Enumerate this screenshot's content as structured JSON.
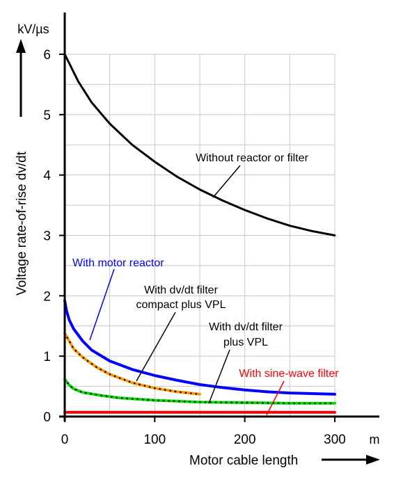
{
  "chart_data": {
    "type": "line",
    "title": "",
    "xlabel": "Motor cable length",
    "ylabel": "Voltage rate-of-rise dv/dt",
    "x_unit": "m",
    "y_unit": "kV/µs",
    "xlim": [
      0,
      300
    ],
    "ylim": [
      0,
      6
    ],
    "x_ticks": [
      0,
      100,
      200,
      300
    ],
    "y_ticks": [
      0,
      1,
      2,
      3,
      4,
      5,
      6
    ],
    "grid": true,
    "series": [
      {
        "name": "Without reactor or filter",
        "color": "#000000",
        "style": "solid",
        "x": [
          0,
          5,
          15,
          30,
          50,
          75,
          100,
          125,
          150,
          175,
          200,
          225,
          250,
          275,
          300
        ],
        "y": [
          6.0,
          5.85,
          5.55,
          5.2,
          4.85,
          4.5,
          4.22,
          3.97,
          3.76,
          3.58,
          3.42,
          3.28,
          3.16,
          3.07,
          3.0
        ]
      },
      {
        "name": "With motor reactor",
        "color": "#0000ff",
        "style": "solid",
        "x": [
          0,
          2,
          5,
          10,
          20,
          30,
          50,
          75,
          100,
          125,
          150,
          175,
          200,
          225,
          250,
          275,
          300
        ],
        "y": [
          1.92,
          1.75,
          1.6,
          1.45,
          1.25,
          1.1,
          0.92,
          0.78,
          0.68,
          0.6,
          0.53,
          0.48,
          0.44,
          0.41,
          0.39,
          0.38,
          0.37
        ]
      },
      {
        "name": "With dv/dt filter compact plus VPL",
        "color": "#ff9900",
        "style": "solid-dotted",
        "x": [
          0,
          5,
          10,
          20,
          35,
          50,
          75,
          100,
          125,
          150
        ],
        "y": [
          1.38,
          1.25,
          1.12,
          0.98,
          0.82,
          0.7,
          0.56,
          0.47,
          0.41,
          0.37
        ]
      },
      {
        "name": "With dv/dt filter plus VPL",
        "color": "#00dd00",
        "style": "solid-dotted",
        "x": [
          0,
          5,
          10,
          20,
          40,
          60,
          100,
          150,
          200,
          250,
          300
        ],
        "y": [
          0.62,
          0.52,
          0.46,
          0.4,
          0.35,
          0.31,
          0.27,
          0.24,
          0.23,
          0.22,
          0.22
        ]
      },
      {
        "name": "With sine-wave filter",
        "color": "#ff0000",
        "style": "solid",
        "x": [
          0,
          300
        ],
        "y": [
          0.07,
          0.07
        ]
      }
    ]
  }
}
